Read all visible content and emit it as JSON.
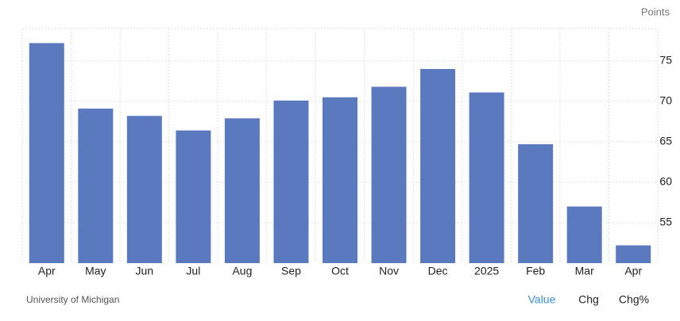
{
  "chart_data": {
    "type": "bar",
    "unit_label": "Points",
    "categories": [
      "Apr",
      "May",
      "Jun",
      "Jul",
      "Aug",
      "Sep",
      "Oct",
      "Nov",
      "Dec",
      "2025",
      "Feb",
      "Mar",
      "Apr"
    ],
    "values": [
      77.2,
      69.1,
      68.2,
      66.4,
      67.9,
      70.1,
      70.5,
      71.8,
      74.0,
      71.1,
      64.7,
      57.0,
      52.2
    ],
    "color": "#5b79be",
    "ylim": [
      50,
      79
    ],
    "yticks": [
      55,
      60,
      65,
      70,
      75
    ],
    "grid": true,
    "source": "University of Michigan"
  },
  "controls": [
    "Value",
    "Chg",
    "Chg%"
  ]
}
